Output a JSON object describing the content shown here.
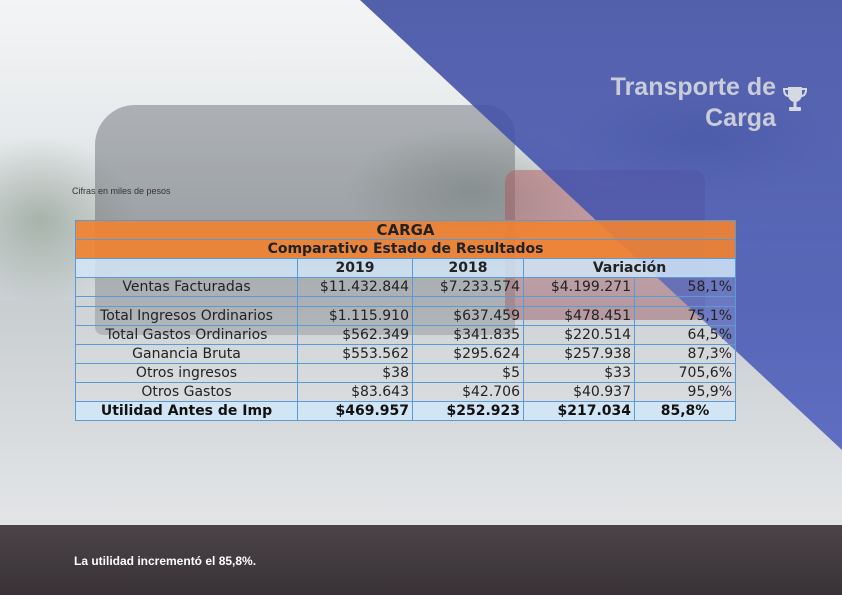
{
  "header": {
    "title_line1": "Transporte de",
    "title_line2": "Carga",
    "icon": "trophy-icon"
  },
  "note": "Cifras en miles de pesos",
  "table": {
    "title": "CARGA",
    "subtitle": "Comparativo Estado de Resultados",
    "columns": [
      "",
      "2019",
      "2018",
      "Variación"
    ],
    "rows": [
      {
        "label": "Ventas Facturadas",
        "v2019": "$11.432.844",
        "v2018": "$7.233.574",
        "var_abs": "$4.199.271",
        "var_pct": "58,1%"
      },
      {
        "label": "Total Ingresos Ordinarios",
        "v2019": "$1.115.910",
        "v2018": "$637.459",
        "var_abs": "$478.451",
        "var_pct": "75,1%"
      },
      {
        "label": "Total Gastos Ordinarios",
        "v2019": "$562.349",
        "v2018": "$341.835",
        "var_abs": "$220.514",
        "var_pct": "64,5%"
      },
      {
        "label": "Ganancia Bruta",
        "v2019": "$553.562",
        "v2018": "$295.624",
        "var_abs": "$257.938",
        "var_pct": "87,3%"
      },
      {
        "label": "Otros ingresos",
        "v2019": "$38",
        "v2018": "$5",
        "var_abs": "$33",
        "var_pct": "705,6%"
      },
      {
        "label": "Otros Gastos",
        "v2019": "$83.643",
        "v2018": "$42.706",
        "var_abs": "$40.937",
        "var_pct": "95,9%"
      }
    ],
    "total": {
      "label": "Utilidad Antes de Imp",
      "v2019": "$469.957",
      "v2018": "$252.923",
      "var_abs": "$217.034",
      "var_pct": "85,8%"
    }
  },
  "footer": {
    "text": "La utilidad incrementó el 85,8%."
  },
  "colors": {
    "accent_blue": "#4a5abe",
    "orange": "#f08232",
    "border_blue": "#5b9bd5",
    "footer_bg": "#4a4348"
  }
}
